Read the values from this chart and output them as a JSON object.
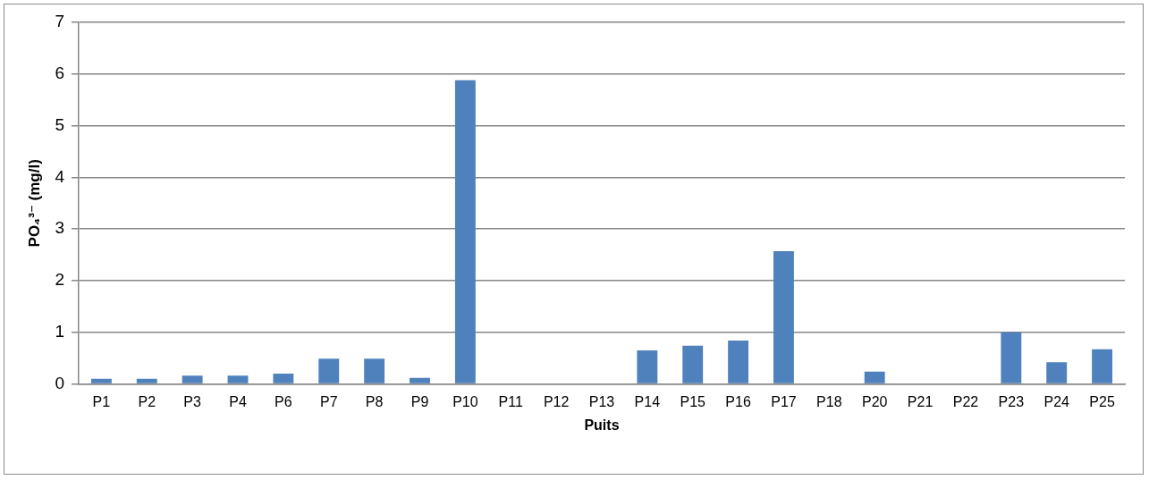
{
  "chart_data": {
    "type": "bar",
    "xlabel": "Puits",
    "ylabel": "PO₄³⁻ (mg/l)",
    "categories": [
      "P1",
      "P2",
      "P3",
      "P4",
      "P6",
      "P7",
      "P8",
      "P9",
      "P10",
      "P11",
      "P12",
      "P13",
      "P14",
      "P15",
      "P16",
      "P17",
      "P18",
      "P20",
      "P21",
      "P22",
      "P23",
      "P24",
      "P25"
    ],
    "values": [
      0.1,
      0.1,
      0.16,
      0.16,
      0.2,
      0.49,
      0.49,
      0.12,
      5.88,
      0,
      0,
      0,
      0.65,
      0.74,
      0.84,
      2.57,
      0,
      0.24,
      0,
      0,
      1.0,
      0.42,
      0.67
    ],
    "color": "#4f81bd",
    "ylim": [
      0,
      7
    ],
    "yticks": [
      0,
      1,
      2,
      3,
      4,
      5,
      6,
      7
    ],
    "grid": "y",
    "legend": false
  }
}
